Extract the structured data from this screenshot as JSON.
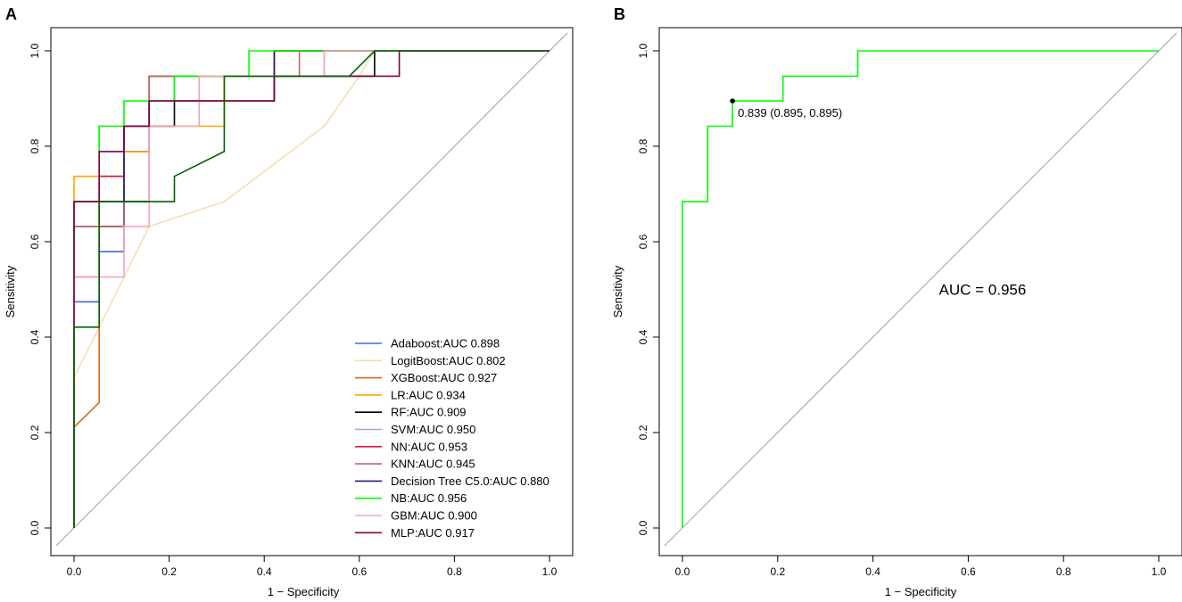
{
  "panel_letters": [
    "A",
    "B"
  ],
  "chart_data": [
    {
      "type": "line",
      "panel": "A",
      "xlabel": "1 − Specificity",
      "ylabel": "Sensitivity",
      "xlim": [
        0,
        1
      ],
      "ylim": [
        0,
        1
      ],
      "xticks": [
        "0.0",
        "0.2",
        "0.4",
        "0.6",
        "0.8",
        "1.0"
      ],
      "yticks": [
        "0.0",
        "0.2",
        "0.4",
        "0.6",
        "0.8",
        "1.0"
      ],
      "legend_position": "bottom-right",
      "diagonal_color": "#a0a0a0",
      "series": [
        {
          "name": "Adaboost:AUC 0.898",
          "color": "#4169e1",
          "x": [
            0,
            0,
            0.053,
            0.053,
            0.105,
            0.105,
            0.158,
            0.158,
            0.211,
            0.211,
            0.421,
            0.421,
            1
          ],
          "y": [
            0,
            0.474,
            0.474,
            0.579,
            0.579,
            0.789,
            0.789,
            0.895,
            0.895,
            0.947,
            0.947,
            1,
            1
          ]
        },
        {
          "name": "LogitBoost:AUC 0.802",
          "color": "#f5deb3",
          "x": [
            0,
            0,
            0.053,
            0.158,
            0.316,
            0.526,
            0.6,
            0.632,
            1
          ],
          "y": [
            0,
            0.316,
            0.421,
            0.632,
            0.684,
            0.842,
            0.947,
            1,
            1
          ]
        },
        {
          "name": "XGBoost:AUC 0.927",
          "color": "#d2691e",
          "x": [
            0,
            0,
            0.053,
            0.053,
            0.105,
            0.105,
            0.158,
            0.158,
            0.316,
            0.316,
            0.421,
            0.421,
            1
          ],
          "y": [
            0,
            0.211,
            0.263,
            0.684,
            0.684,
            0.842,
            0.842,
            0.947,
            0.947,
            0.947,
            0.947,
            1,
            1
          ]
        },
        {
          "name": "LR:AUC 0.934",
          "color": "#ffa500",
          "x": [
            0,
            0,
            0.053,
            0.053,
            0.105,
            0.105,
            0.158,
            0.158,
            0.316,
            0.316,
            0.421,
            0.421,
            1
          ],
          "y": [
            0,
            0.737,
            0.737,
            0.737,
            0.737,
            0.789,
            0.789,
            0.842,
            0.842,
            0.947,
            0.947,
            1,
            1
          ]
        },
        {
          "name": "RF:AUC 0.909",
          "color": "#000000",
          "x": [
            0,
            0,
            0.105,
            0.105,
            0.158,
            0.158,
            0.211,
            0.211,
            0.421,
            0.421,
            0.632,
            0.632,
            1
          ],
          "y": [
            0,
            0.632,
            0.632,
            0.684,
            0.684,
            0.842,
            0.842,
            0.895,
            0.895,
            0.947,
            0.947,
            1,
            1
          ]
        },
        {
          "name": "SVM:AUC 0.950",
          "color": "#b19cd9",
          "x": [
            0,
            0,
            0.053,
            0.053,
            0.158,
            0.158,
            0.263,
            0.263,
            0.421,
            0.421,
            0.526,
            0.526,
            1
          ],
          "y": [
            0,
            0.632,
            0.632,
            0.842,
            0.842,
            0.947,
            0.947,
            0.947,
            0.947,
            0.947,
            0.947,
            1,
            1
          ]
        },
        {
          "name": "NN:AUC 0.953",
          "color": "#dc143c",
          "x": [
            0,
            0,
            0.053,
            0.053,
            0.105,
            0.105,
            0.158,
            0.158,
            0.421,
            0.421,
            1
          ],
          "y": [
            0,
            0.526,
            0.526,
            0.737,
            0.737,
            0.842,
            0.842,
            0.947,
            0.947,
            1,
            1
          ]
        },
        {
          "name": "KNN:AUC 0.945",
          "color": "#bc6b6b",
          "x": [
            0,
            0,
            0.105,
            0.105,
            0.158,
            0.158,
            0.474,
            0.474,
            1
          ],
          "y": [
            0,
            0.632,
            0.632,
            0.842,
            0.842,
            0.947,
            0.947,
            1,
            1
          ]
        },
        {
          "name": "Decision Tree C5.0:AUC 0.880",
          "color": "#1a237e",
          "x": [
            0,
            0,
            0.105,
            0.105,
            0.158,
            0.158,
            0.421,
            0.421,
            1
          ],
          "y": [
            0,
            0.684,
            0.684,
            0.842,
            0.842,
            0.895,
            0.895,
            1,
            1
          ]
        },
        {
          "name": "NB:AUC 0.956",
          "color": "#00ff00",
          "x": [
            0,
            0,
            0.053,
            0.053,
            0.105,
            0.105,
            0.211,
            0.211,
            0.368,
            0.368,
            1
          ],
          "y": [
            0,
            0.684,
            0.684,
            0.842,
            0.842,
            0.895,
            0.895,
            0.947,
            0.947,
            1,
            1
          ]
        },
        {
          "name": "GBM:AUC 0.900",
          "color": "#f4a6b8",
          "x": [
            0,
            0,
            0.105,
            0.105,
            0.158,
            0.158,
            0.263,
            0.263,
            0.526,
            0.526,
            1
          ],
          "y": [
            0,
            0.526,
            0.526,
            0.632,
            0.632,
            0.842,
            0.842,
            0.947,
            0.947,
            1,
            1
          ]
        },
        {
          "name": "MLP:AUC 0.917",
          "color": "#800040",
          "x": [
            0,
            0,
            0.053,
            0.053,
            0.105,
            0.105,
            0.158,
            0.158,
            0.421,
            0.421,
            0.684,
            0.684,
            1
          ],
          "y": [
            0,
            0.684,
            0.684,
            0.789,
            0.789,
            0.842,
            0.842,
            0.895,
            0.895,
            0.947,
            0.947,
            1,
            1
          ]
        },
        {
          "name": "",
          "color": "#006400",
          "x": [
            0,
            0,
            0.053,
            0.053,
            0.105,
            0.158,
            0.211,
            0.211,
            0.316,
            0.316,
            0.579,
            0.632,
            0.632,
            1
          ],
          "y": [
            0,
            0.421,
            0.421,
            0.684,
            0.684,
            0.684,
            0.684,
            0.737,
            0.789,
            0.947,
            0.947,
            1,
            1,
            1
          ]
        }
      ]
    },
    {
      "type": "line",
      "panel": "B",
      "xlabel": "1 − Specificity",
      "ylabel": "Sensitivity",
      "xlim": [
        0,
        1
      ],
      "ylim": [
        0,
        1
      ],
      "xticks": [
        "0.0",
        "0.2",
        "0.4",
        "0.6",
        "0.8",
        "1.0"
      ],
      "yticks": [
        "0.0",
        "0.2",
        "0.4",
        "0.6",
        "0.8",
        "1.0"
      ],
      "diagonal_color": "#a0a0a0",
      "series": [
        {
          "name": "NB",
          "color": "#00ff00",
          "x": [
            0,
            0,
            0.053,
            0.053,
            0.105,
            0.105,
            0.211,
            0.211,
            0.368,
            0.368,
            1
          ],
          "y": [
            0,
            0.684,
            0.684,
            0.842,
            0.842,
            0.895,
            0.895,
            0.947,
            0.947,
            1,
            1
          ]
        }
      ],
      "threshold_point": {
        "x": 0.105,
        "y": 0.895,
        "label": "0.839 (0.895, 0.895)"
      },
      "annotation": {
        "text": "AUC = 0.956",
        "x": 0.63,
        "y": 0.5
      }
    }
  ]
}
